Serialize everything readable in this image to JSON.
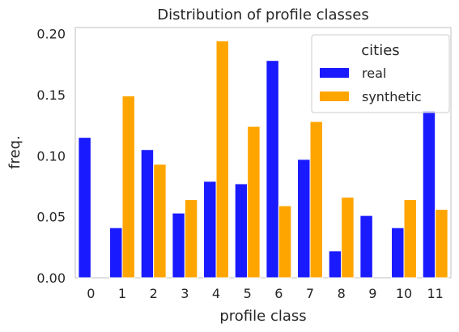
{
  "chart_data": {
    "type": "bar",
    "title": "Distribution of profile classes",
    "xlabel": "profile class",
    "ylabel": "freq.",
    "categories": [
      "0",
      "1",
      "2",
      "3",
      "4",
      "5",
      "6",
      "7",
      "8",
      "9",
      "10",
      "11"
    ],
    "ylim": [
      0,
      0.205
    ],
    "yticks": [
      0.0,
      0.05,
      0.1,
      0.15,
      0.2
    ],
    "ytick_labels": [
      "0.00",
      "0.05",
      "0.10",
      "0.15",
      "0.20"
    ],
    "grid": false,
    "legend": {
      "title": "cities",
      "placement": "top-right"
    },
    "series": [
      {
        "name": "real",
        "color": "#1a1aff",
        "values": [
          0.115,
          0.041,
          0.105,
          0.053,
          0.079,
          0.077,
          0.178,
          0.097,
          0.022,
          0.051,
          0.041,
          0.137
        ]
      },
      {
        "name": "synthetic",
        "color": "#ffa500",
        "values": [
          0.0,
          0.149,
          0.093,
          0.064,
          0.194,
          0.124,
          0.059,
          0.128,
          0.066,
          0.0,
          0.064,
          0.056
        ]
      }
    ]
  }
}
